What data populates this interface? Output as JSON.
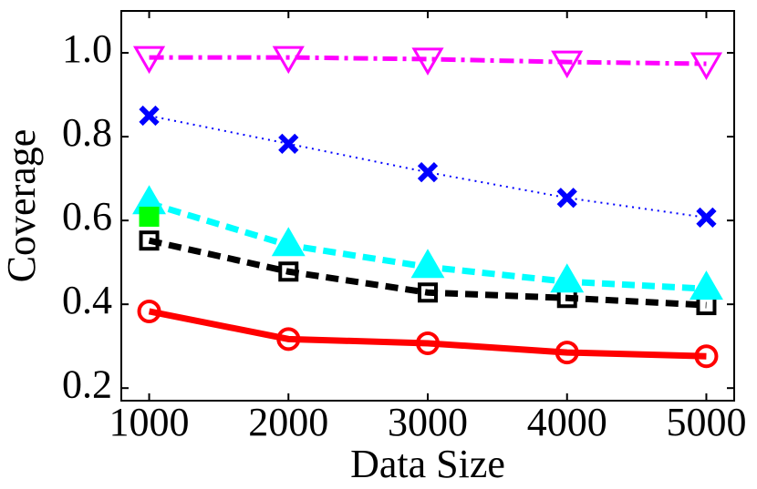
{
  "chart_data": {
    "type": "line",
    "x_label": "Data Size",
    "y_label": "Coverage",
    "x": [
      1000,
      2000,
      3000,
      4000,
      5000
    ],
    "xlim": [
      800,
      5200
    ],
    "xticks": [
      1000,
      2000,
      3000,
      4000,
      5000
    ],
    "ylim": [
      0.17,
      1.1
    ],
    "yticks": [
      0.2,
      0.4,
      0.6,
      0.8,
      {
        "value": 1.0,
        "label": "1.0"
      }
    ],
    "series": [
      {
        "color": "#ff0000",
        "marker": "circle",
        "linestyle": "solid",
        "values": [
          0.383,
          0.317,
          0.307,
          0.285,
          0.276
        ]
      },
      {
        "color": "#000000",
        "marker": "square",
        "linestyle": "dashed",
        "values": [
          0.552,
          0.478,
          0.428,
          0.415,
          0.398
        ]
      },
      {
        "color": "#00ffff",
        "marker": "triangle-up",
        "linestyle": "dashed",
        "values": [
          0.641,
          0.541,
          0.489,
          0.454,
          0.437
        ]
      },
      {
        "color": "#00ff00",
        "marker": "square",
        "linestyle": "none",
        "values": [
          0.609,
          null,
          null,
          null,
          null
        ]
      },
      {
        "color": "#0000ff",
        "marker": "x",
        "linestyle": "dotted",
        "values": [
          0.85,
          0.783,
          0.715,
          0.654,
          0.607
        ]
      },
      {
        "color": "#ff00ff",
        "marker": "triangle-down",
        "linestyle": "dashdot",
        "values": [
          0.989,
          0.989,
          0.985,
          0.978,
          0.974
        ]
      }
    ]
  }
}
